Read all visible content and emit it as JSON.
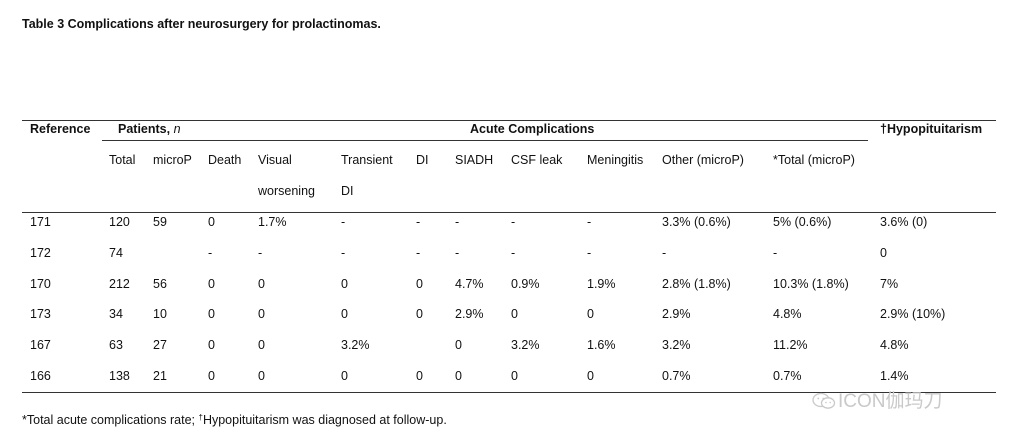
{
  "title": "Table 3 Complications after neurosurgery for prolactinomas.",
  "headers": {
    "reference": "Reference",
    "patients": "Patients,",
    "patients_n": "n",
    "acute": "Acute Complications",
    "hypo": "†Hypopituitarism"
  },
  "subheaders": [
    "Total",
    "microP",
    "Death",
    "Visual",
    "worsening",
    "Transient",
    "DI",
    "DI",
    "SIADH",
    "CSF leak",
    "Meningitis",
    "Other (microP)",
    "*Total (microP)"
  ],
  "rows": [
    [
      "171",
      "120",
      "59",
      "0",
      "1.7%",
      "-",
      "-",
      "-",
      "-",
      "-",
      "3.3% (0.6%)",
      "5% (0.6%)",
      "3.6% (0)"
    ],
    [
      "172",
      "74",
      "",
      "-",
      "-",
      "-",
      "-",
      "-",
      "-",
      "-",
      "-",
      "-",
      "0"
    ],
    [
      "170",
      "212",
      "56",
      "0",
      "0",
      "0",
      "0",
      "4.7%",
      "0.9%",
      "1.9%",
      "2.8% (1.8%)",
      "10.3% (1.8%)",
      "7%"
    ],
    [
      "173",
      "34",
      "10",
      "0",
      "0",
      "0",
      "0",
      "2.9%",
      "0",
      "0",
      "2.9%",
      "4.8%",
      "2.9% (10%)"
    ],
    [
      "167",
      "63",
      "27",
      "0",
      "0",
      "3.2%",
      "",
      "0",
      "3.2%",
      "1.6%",
      "3.2%",
      "11.2%",
      "4.8%"
    ],
    [
      "166",
      "138",
      "21",
      "0",
      "0",
      "0",
      "0",
      "0",
      "0",
      "0",
      "0.7%",
      "0.7%",
      "1.4%"
    ]
  ],
  "footnote": {
    "part1": "*Total acute complications rate; ",
    "dagger": "†",
    "part2": "Hypopituitarism was diagnosed at follow-up."
  },
  "watermark": {
    "text": "ICON伽玛刀",
    "icon": "wechat-icon"
  }
}
